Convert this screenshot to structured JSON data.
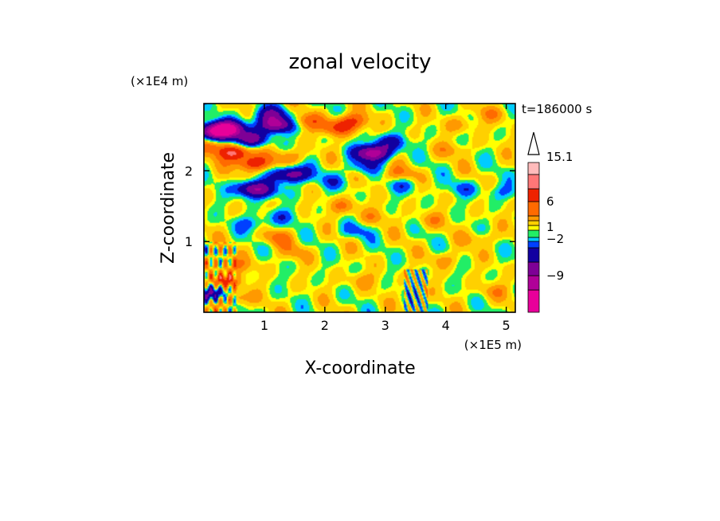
{
  "chart_data": {
    "type": "heatmap",
    "title": "zonal velocity",
    "xlabel": "X-coordinate",
    "ylabel": "Z-coordinate",
    "x_scale_note": "(×1E5 m)",
    "y_scale_note": "(×1E4 m)",
    "time_label": "t=186000 s",
    "xlim": [
      0,
      5.15
    ],
    "ylim": [
      0,
      2.95
    ],
    "x_ticks": [
      "1",
      "2",
      "3",
      "4",
      "5"
    ],
    "x_tick_values": [
      1,
      2,
      3,
      4,
      5
    ],
    "y_ticks": [
      "1",
      "2"
    ],
    "y_tick_values": [
      1,
      2
    ],
    "colorbar": {
      "colors": [
        "#e8009a",
        "#b00098",
        "#7e0096",
        "#1200a0",
        "#0040ff",
        "#00ccff",
        "#22ee66",
        "#ffff00",
        "#ffd000",
        "#ff9900",
        "#ff6a00",
        "#ee2200",
        "#ff7777",
        "#ffbbbb"
      ],
      "labels": [
        {
          "text": "15.1",
          "value": 15.1
        },
        {
          "text": "6",
          "value": 6
        },
        {
          "text": "1",
          "value": 1
        },
        {
          "text": "−2",
          "value": -2
        },
        {
          "text": "−9",
          "value": -9
        }
      ]
    },
    "features": [
      {
        "x": 0.2,
        "z": 2.55,
        "value": -12
      },
      {
        "x": 0.4,
        "z": 2.6,
        "value": -12
      },
      {
        "x": 0.75,
        "z": 2.45,
        "value": -9
      },
      {
        "x": 1.2,
        "z": 2.65,
        "value": -11
      },
      {
        "x": 1.1,
        "z": 2.8,
        "value": -6
      },
      {
        "x": 0.5,
        "z": 2.25,
        "value": 8
      },
      {
        "x": 0.8,
        "z": 2.1,
        "value": 7
      },
      {
        "x": 0.15,
        "z": 2.35,
        "value": 4
      },
      {
        "x": 0.8,
        "z": 1.75,
        "value": -9
      },
      {
        "x": 1.0,
        "z": 1.7,
        "value": -3
      },
      {
        "x": 1.45,
        "z": 1.95,
        "value": -10
      },
      {
        "x": 1.7,
        "z": 2.7,
        "value": 4
      },
      {
        "x": 2.2,
        "z": 2.6,
        "value": 5
      },
      {
        "x": 2.8,
        "z": 2.25,
        "value": -12
      },
      {
        "x": 3.05,
        "z": 2.4,
        "value": -5
      },
      {
        "x": 2.6,
        "z": 2.05,
        "value": -3
      },
      {
        "x": 2.45,
        "z": 2.7,
        "value": 5
      },
      {
        "x": 3.2,
        "z": 1.95,
        "value": 3
      },
      {
        "x": 1.4,
        "z": 2.2,
        "value": 3
      },
      {
        "x": 2.1,
        "z": 1.85,
        "value": -2.5
      },
      {
        "x": 3.3,
        "z": 1.8,
        "value": -2.5
      },
      {
        "x": 0.8,
        "z": 1.25,
        "value": -3
      },
      {
        "x": 1.3,
        "z": 1.35,
        "value": -2.5
      },
      {
        "x": 2.5,
        "z": 1.15,
        "value": -2.5
      },
      {
        "x": 2.3,
        "z": 1.5,
        "value": 3
      },
      {
        "x": 2.8,
        "z": 1.35,
        "value": 2
      },
      {
        "x": 3.75,
        "z": 1.3,
        "value": 2
      },
      {
        "x": 4.1,
        "z": 2.3,
        "value": 2
      },
      {
        "x": 4.25,
        "z": 2.65,
        "value": 2
      },
      {
        "x": 4.75,
        "z": 2.8,
        "value": 2
      },
      {
        "x": 4.95,
        "z": 1.7,
        "value": -2.5
      },
      {
        "x": 4.3,
        "z": 1.75,
        "value": -2.5
      },
      {
        "x": 4.6,
        "z": 1.05,
        "value": 2
      },
      {
        "x": 4.0,
        "z": 0.75,
        "value": 2
      },
      {
        "x": 1.5,
        "z": 0.85,
        "value": 2
      },
      {
        "x": 1.2,
        "z": 1.05,
        "value": 3
      },
      {
        "x": 0.6,
        "z": 0.65,
        "value": 2
      },
      {
        "x": 2.6,
        "z": 0.45,
        "value": 2
      },
      {
        "x": 4.8,
        "z": 0.3,
        "value": 2
      },
      {
        "x": 0.15,
        "z": 0.25,
        "value": -8
      },
      {
        "x": 0.3,
        "z": 0.45,
        "value": 6
      },
      {
        "x": 0.45,
        "z": 0.2,
        "value": 5
      },
      {
        "x": 0.25,
        "z": 0.7,
        "value": 2
      }
    ]
  }
}
